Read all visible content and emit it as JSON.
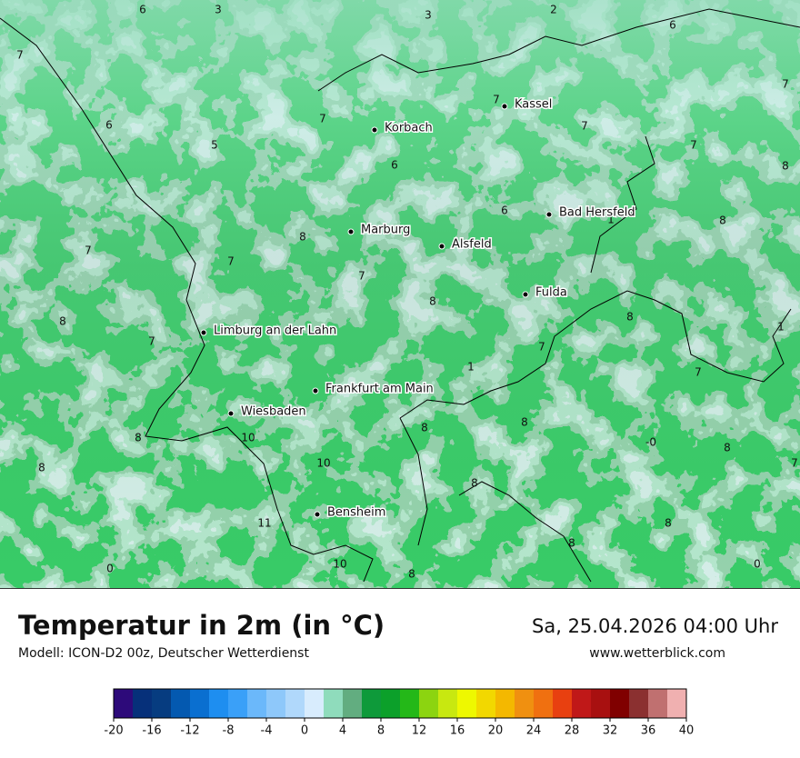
{
  "map": {
    "cities": [
      "Kassel",
      "Korbach",
      "Bad Hersfeld",
      "Marburg",
      "Alsfeld",
      "Fulda",
      "Limburg an der Lahn",
      "Frankfurt am Main",
      "Wiesbaden",
      "Bensheim"
    ],
    "contour_labels": [
      "6",
      "3",
      "3",
      "2",
      "6",
      "7",
      "7",
      "7",
      "7",
      "7",
      "6",
      "5",
      "7",
      "6",
      "8",
      "6",
      "1",
      "8",
      "7",
      "8",
      "7",
      "7",
      "8",
      "8",
      "8",
      "1",
      "7",
      "7",
      "1",
      "7",
      "8",
      "8",
      "-0",
      "8",
      "10",
      "8",
      "7",
      "8",
      "10",
      "8",
      "11",
      "8",
      "8",
      "0",
      "10",
      "8",
      "0"
    ]
  },
  "footer": {
    "title": "Temperatur in 2m (in °C)",
    "model": "Modell: ICON-D2 00z, Deutscher Wetterdienst",
    "datetime": "Sa, 25.04.2026 04:00 Uhr",
    "website": "www.wetterblick.com"
  },
  "colorbar": {
    "colors": [
      "#2d0a7a",
      "#06307a",
      "#063c80",
      "#0459b0",
      "#0a6fd0",
      "#1e8ef0",
      "#3aa0f8",
      "#6bb8fa",
      "#8ec8fa",
      "#b0d8fb",
      "#d8ecfd",
      "#8fdcbc",
      "#62ad80",
      "#0e9a3a",
      "#0ca02a",
      "#24b818",
      "#8cd410",
      "#c8e810",
      "#eef800",
      "#f2d800",
      "#f4b800",
      "#f09010",
      "#f07010",
      "#e84010",
      "#c01818",
      "#a81010",
      "#800000",
      "#8b3030",
      "#c07070",
      "#f0b0b0",
      "#ffe0e0"
    ],
    "ticks": [
      -20,
      -16,
      -12,
      -8,
      -4,
      0,
      4,
      8,
      12,
      16,
      20,
      24,
      28,
      32,
      36,
      40
    ]
  }
}
